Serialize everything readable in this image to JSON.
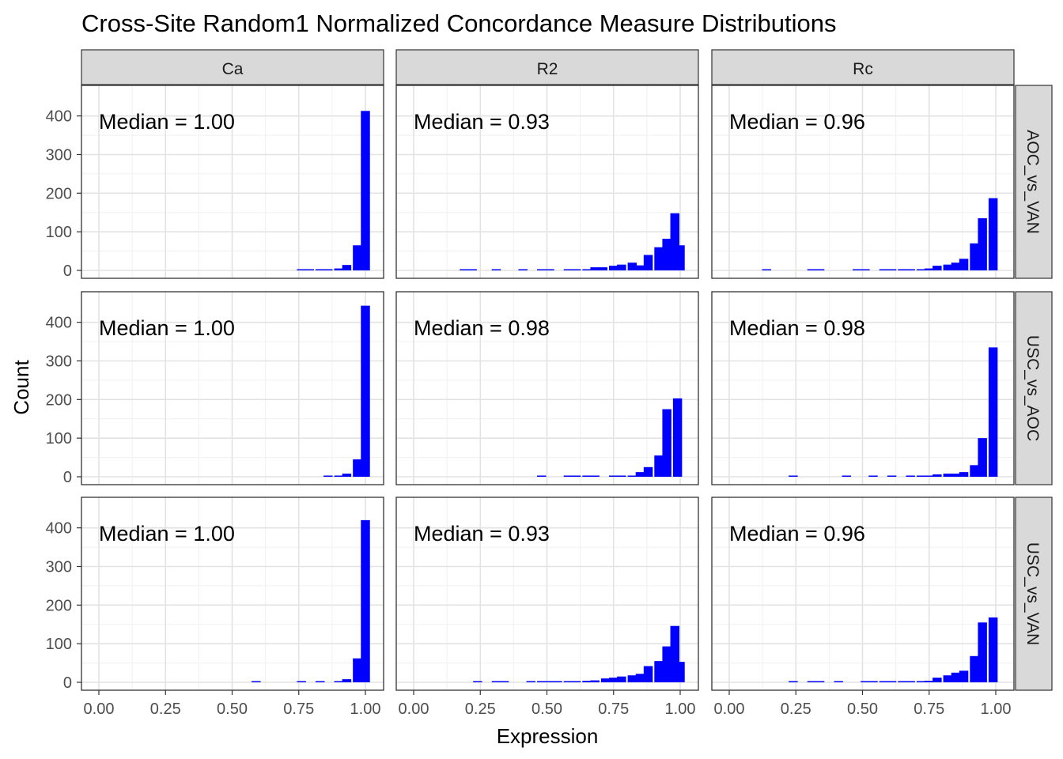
{
  "chart_data": {
    "type": "bar",
    "title": "Cross-Site Random1 Normalized Concordance Measure Distributions",
    "xlabel": "Expression",
    "ylabel": "Count",
    "xlim": [
      0,
      1
    ],
    "ylim": [
      0,
      430
    ],
    "x_ticks": [
      "0.00",
      "0.25",
      "0.50",
      "0.75",
      "1.00"
    ],
    "y_ticks": [
      "0",
      "100",
      "200",
      "300",
      "400"
    ],
    "grid": true,
    "bar_color": "#0000ff",
    "bin_width": 0.034,
    "col_labels": [
      "Ca",
      "R2",
      "Rc"
    ],
    "row_labels": [
      "AOC_vs_VAN",
      "USC_vs_AOC",
      "USC_vs_VAN"
    ],
    "panels": [
      {
        "row": "AOC_vs_VAN",
        "col": "Ca",
        "label": "Median = 1.00",
        "bins": [
          [
            0.76,
            1
          ],
          [
            0.79,
            1
          ],
          [
            0.83,
            1
          ],
          [
            0.86,
            1
          ],
          [
            0.9,
            5
          ],
          [
            0.93,
            14
          ],
          [
            0.97,
            65
          ],
          [
            1.0,
            413
          ]
        ]
      },
      {
        "row": "AOC_vs_VAN",
        "col": "R2",
        "label": "Median = 0.93",
        "bins": [
          [
            0.19,
            1
          ],
          [
            0.22,
            1
          ],
          [
            0.31,
            1
          ],
          [
            0.41,
            1
          ],
          [
            0.48,
            1
          ],
          [
            0.51,
            1
          ],
          [
            0.58,
            2
          ],
          [
            0.61,
            3
          ],
          [
            0.65,
            3
          ],
          [
            0.68,
            8
          ],
          [
            0.71,
            8
          ],
          [
            0.75,
            12
          ],
          [
            0.78,
            15
          ],
          [
            0.82,
            20
          ],
          [
            0.85,
            13
          ],
          [
            0.88,
            40
          ],
          [
            0.92,
            60
          ],
          [
            0.95,
            82
          ],
          [
            0.98,
            148
          ],
          [
            1.0,
            65
          ]
        ]
      },
      {
        "row": "AOC_vs_VAN",
        "col": "Rc",
        "label": "Median = 0.96",
        "bins": [
          [
            0.14,
            1
          ],
          [
            0.31,
            1
          ],
          [
            0.34,
            1
          ],
          [
            0.48,
            1
          ],
          [
            0.51,
            1
          ],
          [
            0.58,
            1
          ],
          [
            0.61,
            1
          ],
          [
            0.65,
            2
          ],
          [
            0.68,
            2
          ],
          [
            0.72,
            3
          ],
          [
            0.75,
            5
          ],
          [
            0.78,
            12
          ],
          [
            0.82,
            15
          ],
          [
            0.85,
            20
          ],
          [
            0.88,
            30
          ],
          [
            0.92,
            70
          ],
          [
            0.95,
            135
          ],
          [
            0.99,
            187
          ]
        ]
      },
      {
        "row": "USC_vs_AOC",
        "col": "Ca",
        "label": "Median = 1.00",
        "bins": [
          [
            0.86,
            1
          ],
          [
            0.9,
            3
          ],
          [
            0.93,
            8
          ],
          [
            0.97,
            45
          ],
          [
            1.0,
            443
          ]
        ]
      },
      {
        "row": "USC_vs_AOC",
        "col": "R2",
        "label": "Median = 0.98",
        "bins": [
          [
            0.48,
            1
          ],
          [
            0.58,
            1
          ],
          [
            0.61,
            1
          ],
          [
            0.65,
            2
          ],
          [
            0.68,
            1
          ],
          [
            0.75,
            1
          ],
          [
            0.78,
            2
          ],
          [
            0.82,
            3
          ],
          [
            0.85,
            12
          ],
          [
            0.88,
            25
          ],
          [
            0.92,
            55
          ],
          [
            0.95,
            175
          ],
          [
            0.99,
            203
          ]
        ]
      },
      {
        "row": "USC_vs_AOC",
        "col": "Rc",
        "label": "Median = 0.98",
        "bins": [
          [
            0.24,
            1
          ],
          [
            0.44,
            1
          ],
          [
            0.54,
            1
          ],
          [
            0.61,
            1
          ],
          [
            0.68,
            1
          ],
          [
            0.72,
            1
          ],
          [
            0.75,
            2
          ],
          [
            0.78,
            6
          ],
          [
            0.82,
            8
          ],
          [
            0.85,
            8
          ],
          [
            0.88,
            12
          ],
          [
            0.92,
            30
          ],
          [
            0.95,
            100
          ],
          [
            0.99,
            335
          ]
        ]
      },
      {
        "row": "USC_vs_VAN",
        "col": "Ca",
        "label": "Median = 1.00",
        "bins": [
          [
            0.59,
            1
          ],
          [
            0.76,
            1
          ],
          [
            0.83,
            1
          ],
          [
            0.9,
            3
          ],
          [
            0.93,
            8
          ],
          [
            0.97,
            62
          ],
          [
            1.0,
            420
          ]
        ]
      },
      {
        "row": "USC_vs_VAN",
        "col": "R2",
        "label": "Median = 0.93",
        "bins": [
          [
            0.24,
            1
          ],
          [
            0.31,
            1
          ],
          [
            0.34,
            2
          ],
          [
            0.44,
            1
          ],
          [
            0.48,
            1
          ],
          [
            0.51,
            1
          ],
          [
            0.54,
            1
          ],
          [
            0.58,
            1
          ],
          [
            0.61,
            3
          ],
          [
            0.65,
            4
          ],
          [
            0.68,
            5
          ],
          [
            0.72,
            10
          ],
          [
            0.75,
            12
          ],
          [
            0.78,
            15
          ],
          [
            0.82,
            18
          ],
          [
            0.85,
            22
          ],
          [
            0.88,
            42
          ],
          [
            0.92,
            55
          ],
          [
            0.95,
            93
          ],
          [
            0.98,
            146
          ],
          [
            1.0,
            53
          ]
        ]
      },
      {
        "row": "USC_vs_VAN",
        "col": "Rc",
        "label": "Median = 0.96",
        "bins": [
          [
            0.24,
            1
          ],
          [
            0.31,
            1
          ],
          [
            0.34,
            1
          ],
          [
            0.41,
            1
          ],
          [
            0.51,
            2
          ],
          [
            0.54,
            1
          ],
          [
            0.58,
            1
          ],
          [
            0.61,
            1
          ],
          [
            0.65,
            1
          ],
          [
            0.68,
            1
          ],
          [
            0.72,
            2
          ],
          [
            0.75,
            4
          ],
          [
            0.78,
            12
          ],
          [
            0.82,
            18
          ],
          [
            0.85,
            25
          ],
          [
            0.88,
            30
          ],
          [
            0.92,
            68
          ],
          [
            0.95,
            155
          ],
          [
            0.99,
            168
          ]
        ]
      }
    ]
  }
}
